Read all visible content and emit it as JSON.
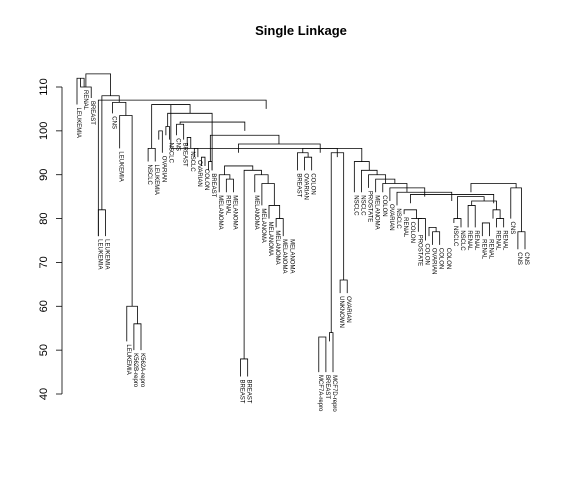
{
  "chart_data": {
    "type": "dendrogram",
    "title": "Single Linkage",
    "xlabel": "",
    "ylabel": "",
    "ylim": [
      40,
      115
    ],
    "yticks": [
      40,
      50,
      60,
      70,
      80,
      90,
      100,
      110
    ],
    "grid": false,
    "leaves": [
      {
        "label": "LEUKEMIA",
        "height": 106
      },
      {
        "label": "RENAL",
        "height": 110
      },
      {
        "label": "BREAST",
        "height": 107.5
      },
      {
        "label": "LEUKEMIA",
        "height": 76
      },
      {
        "label": "LEUKEMIA",
        "height": 76
      },
      {
        "label": "CNS",
        "height": 104
      },
      {
        "label": "LEUKEMIA",
        "height": 96
      },
      {
        "label": "LEUKEMIA",
        "height": 52
      },
      {
        "label": "K562B-repro",
        "height": 50
      },
      {
        "label": "K562A-repro",
        "height": 50
      },
      {
        "label": "NSCLC",
        "height": 93
      },
      {
        "label": "LEUKEMIA",
        "height": 93
      },
      {
        "label": "OVARIAN",
        "height": 95
      },
      {
        "label": "NSCLC",
        "height": 98
      },
      {
        "label": "CNS",
        "height": 99
      },
      {
        "label": "BREAST",
        "height": 98
      },
      {
        "label": "NSCLC",
        "height": 96
      },
      {
        "label": "OVARIAN",
        "height": 94
      },
      {
        "label": "COLON",
        "height": 92
      },
      {
        "label": "BREAST",
        "height": 91
      },
      {
        "label": "MELANOMA",
        "height": 86
      },
      {
        "label": "RENAL",
        "height": 86
      },
      {
        "label": "MELANOMA",
        "height": 86
      },
      {
        "label": "BREAST",
        "height": 44
      },
      {
        "label": "BREAST",
        "height": 44
      },
      {
        "label": "MELANOMA",
        "height": 86
      },
      {
        "label": "MELANOMA",
        "height": 83
      },
      {
        "label": "MELANOMA",
        "height": 80
      },
      {
        "label": "MELANOMA",
        "height": 78
      },
      {
        "label": "MELANOMA",
        "height": 76
      },
      {
        "label": "MELANOMA",
        "height": 76
      },
      {
        "label": "BREAST",
        "height": 91
      },
      {
        "label": "OVARIAN",
        "height": 91
      },
      {
        "label": "COLON",
        "height": 91
      },
      {
        "label": "MCF7A-repro",
        "height": 45
      },
      {
        "label": "BREAST",
        "height": 45
      },
      {
        "label": "MCF7D-repro",
        "height": 45
      },
      {
        "label": "UNKNOWN",
        "height": 63
      },
      {
        "label": "OVARIAN",
        "height": 63
      },
      {
        "label": "NSCLC",
        "height": 86
      },
      {
        "label": "NSCLC",
        "height": 86
      },
      {
        "label": "PROSTATE",
        "height": 87
      },
      {
        "label": "MELANOMA",
        "height": 86
      },
      {
        "label": "COLON",
        "height": 86
      },
      {
        "label": "OVARIAN",
        "height": 84
      },
      {
        "label": "NSCLC",
        "height": 83
      },
      {
        "label": "RENAL",
        "height": 81
      },
      {
        "label": "COLON",
        "height": 80
      },
      {
        "label": "PROSTATE",
        "height": 77
      },
      {
        "label": "COLON",
        "height": 75
      },
      {
        "label": "OVARIAN",
        "height": 74
      },
      {
        "label": "COLON",
        "height": 74
      },
      {
        "label": "COLON",
        "height": 74
      },
      {
        "label": "NSCLC",
        "height": 79
      },
      {
        "label": "NSCLC",
        "height": 78
      },
      {
        "label": "RENAL",
        "height": 78
      },
      {
        "label": "RENAL",
        "height": 78
      },
      {
        "label": "RENAL",
        "height": 76
      },
      {
        "label": "RENAL",
        "height": 76
      },
      {
        "label": "RENAL",
        "height": 78
      },
      {
        "label": "RENAL",
        "height": 78
      },
      {
        "label": "CNS",
        "height": 80
      },
      {
        "label": "CNS",
        "height": 73
      },
      {
        "label": "CNS",
        "height": 73
      }
    ],
    "merges": [
      [
        7,
        8,
        9,
        11,
        12,
        13,
        14,
        15,
        16,
        17,
        18,
        22,
        23,
        25,
        26,
        27,
        28,
        29,
        31,
        32,
        33,
        34,
        35,
        36,
        38,
        39,
        40,
        41,
        42,
        43,
        44,
        45,
        46,
        47,
        48,
        49,
        50,
        51,
        52,
        53,
        55,
        56,
        57,
        58,
        59,
        60,
        61
      ]
    ],
    "tree": [
      {
        "x1": 0,
        "x2": 1,
        "h": 112
      },
      {
        "x1": 0.5,
        "x2": 2,
        "h": 110
      },
      {
        "x1": 3,
        "x2": 4,
        "h": 82
      },
      {
        "x1": 8,
        "x2": 9,
        "h": 56
      },
      {
        "x1": 7,
        "x2": 8.5,
        "h": 60
      },
      {
        "x1": 6,
        "x2": 7.75,
        "h": 103.5
      },
      {
        "x1": 5,
        "x2": 6.875,
        "h": 106.5
      },
      {
        "x1": 3.5,
        "x2": 5.94,
        "h": 108
      },
      {
        "x1": 1.25,
        "x2": 4.72,
        "h": 113
      },
      {
        "x1": 10,
        "x2": 11,
        "h": 96
      },
      {
        "x1": 11.5,
        "x2": 12,
        "h": 100
      },
      {
        "x1": 12.5,
        "x2": 13,
        "h": 101
      },
      {
        "x1": 14,
        "x2": 15,
        "h": 101.5
      },
      {
        "x1": 15.5,
        "x2": 16,
        "h": 98.5
      },
      {
        "x1": 16.5,
        "x2": 17,
        "h": 96
      },
      {
        "x1": 17.5,
        "x2": 18,
        "h": 94
      },
      {
        "x1": 18.5,
        "x2": 19,
        "h": 93
      },
      {
        "x1": 23,
        "x2": 24,
        "h": 48
      },
      {
        "x1": 28,
        "x2": 29,
        "h": 80
      },
      {
        "x1": 27,
        "x2": 28.5,
        "h": 83
      },
      {
        "x1": 26,
        "x2": 27.75,
        "h": 88
      },
      {
        "x1": 25,
        "x2": 26.875,
        "h": 90
      },
      {
        "x1": 23.5,
        "x2": 25.94,
        "h": 91
      },
      {
        "x1": 21,
        "x2": 22,
        "h": 89
      },
      {
        "x1": 20,
        "x2": 21.5,
        "h": 90
      },
      {
        "x1": 20.75,
        "x2": 24.72,
        "h": 92
      },
      {
        "x1": 32,
        "x2": 33,
        "h": 94
      },
      {
        "x1": 31,
        "x2": 32.5,
        "h": 95
      },
      {
        "x1": 34,
        "x2": 35,
        "h": 53
      },
      {
        "x1": 35.5,
        "x2": 36,
        "h": 54
      },
      {
        "x1": 37,
        "x2": 38,
        "h": 66
      },
      {
        "x1": 35.75,
        "x2": 37.5,
        "h": 95
      },
      {
        "x1": 31.75,
        "x2": 36.6,
        "h": 96
      },
      {
        "x1": 22.7,
        "x2": 34.2,
        "h": 97
      },
      {
        "x1": 18.75,
        "x2": 28.4,
        "h": 99
      },
      {
        "x1": 14.5,
        "x2": 23.6,
        "h": 102
      },
      {
        "x1": 12.75,
        "x2": 19,
        "h": 104
      },
      {
        "x1": 10.5,
        "x2": 15.9,
        "h": 106
      },
      {
        "x1": 48,
        "x2": 49,
        "h": 80
      },
      {
        "x1": 50,
        "x2": 51,
        "h": 77
      },
      {
        "x1": 49.5,
        "x2": 50.5,
        "h": 78
      },
      {
        "x1": 47,
        "x2": 48.5,
        "h": 80
      },
      {
        "x1": 46,
        "x2": 47.75,
        "h": 82
      },
      {
        "x1": 53,
        "x2": 54,
        "h": 80
      },
      {
        "x1": 55,
        "x2": 56,
        "h": 83
      },
      {
        "x1": 57,
        "x2": 58,
        "h": 79
      },
      {
        "x1": 59,
        "x2": 60,
        "h": 80
      },
      {
        "x1": 58.5,
        "x2": 59.5,
        "h": 82
      },
      {
        "x1": 55.5,
        "x2": 59,
        "h": 84
      },
      {
        "x1": 53.5,
        "x2": 57.25,
        "h": 85
      },
      {
        "x1": 62,
        "x2": 63,
        "h": 77
      },
      {
        "x1": 61,
        "x2": 62.5,
        "h": 87
      },
      {
        "x1": 55.4,
        "x2": 61.75,
        "h": 88
      },
      {
        "x1": 46.9,
        "x2": 58.6,
        "h": 85.5
      },
      {
        "x1": 45,
        "x2": 52.7,
        "h": 86
      },
      {
        "x1": 44,
        "x2": 48.9,
        "h": 87
      },
      {
        "x1": 43,
        "x2": 46.4,
        "h": 88
      },
      {
        "x1": 42,
        "x2": 44.7,
        "h": 89
      },
      {
        "x1": 41,
        "x2": 43.4,
        "h": 90
      },
      {
        "x1": 40,
        "x2": 42.2,
        "h": 91
      },
      {
        "x1": 39,
        "x2": 41.1,
        "h": 93
      },
      {
        "x1": 40.05,
        "x2": 13.2,
        "h": 96
      },
      {
        "x1": 26.6,
        "x2": 3.0,
        "h": 107
      }
    ]
  }
}
